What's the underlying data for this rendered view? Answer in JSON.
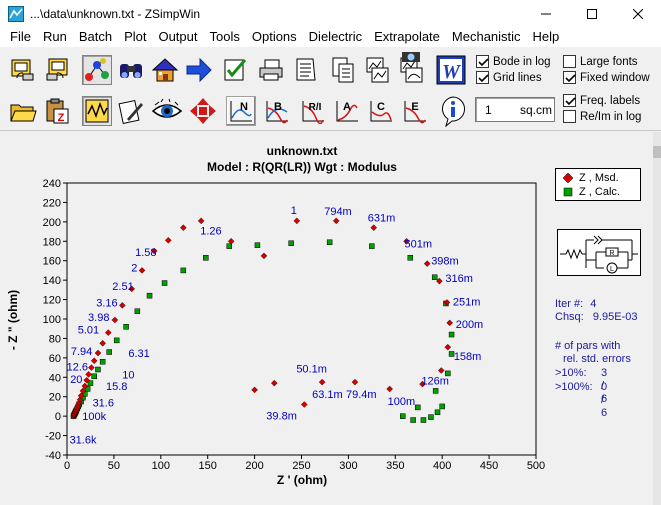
{
  "window": {
    "title": "...\\data\\unknown.txt - ZSimpWin"
  },
  "menu": [
    "File",
    "Run",
    "Batch",
    "Plot",
    "Output",
    "Tools",
    "Options",
    "Dielectric",
    "Extrapolate",
    "Mechanistic",
    "Help"
  ],
  "toolbar": {
    "row1_icons": [
      "open-data-icon",
      "open-model-icon",
      "molecule-icon",
      "binoculars-icon",
      "home-icon",
      "arrow-right-icon",
      "checklist-icon",
      "printer-icon",
      "print-preview-icon",
      "document-icon",
      "copy-graph-icon",
      "paste-graph-icon",
      "camera-icon",
      "word-icon"
    ],
    "row2_icons": [
      "open-folder-icon",
      "clipboard-z-icon",
      "fit-wave-icon",
      "edit-notes-icon",
      "eye-icon",
      "move-arrows-icon",
      "nyquist-plot-icon",
      "bode-plot-icon",
      "ri-plot-icon",
      "admittance-plot-icon",
      "capacitance-plot-icon",
      "permittivity-plot-icon",
      "info-icon"
    ],
    "row2_labels": [
      "N",
      "B",
      "R/I",
      "A",
      "C",
      "E"
    ],
    "area_value": "1",
    "area_unit": "sq.cm",
    "checkboxes": [
      {
        "label": "Bode in log",
        "checked": true
      },
      {
        "label": "Grid lines",
        "checked": true
      },
      {
        "label": "Large fonts",
        "checked": false
      },
      {
        "label": "Fixed window",
        "checked": true
      },
      {
        "label": "Freq. labels",
        "checked": true
      },
      {
        "label": "Re/Im in log",
        "checked": false
      }
    ]
  },
  "chart_data": {
    "type": "scatter",
    "title": "unknown.txt",
    "subtitle": "Model : R(QR(LR))      Wgt : Modulus",
    "xlabel": "Z ' (ohm)",
    "ylabel": "- Z \" (ohm)",
    "xlim": [
      0,
      500
    ],
    "ylim": [
      -40,
      240
    ],
    "xticks": [
      0,
      50,
      100,
      150,
      200,
      250,
      300,
      350,
      400,
      450,
      500
    ],
    "yticks": [
      -40,
      -20,
      0,
      20,
      40,
      60,
      80,
      100,
      120,
      140,
      160,
      180,
      200,
      220,
      240
    ],
    "grid": false,
    "legend_position": "right",
    "colors": {
      "measured": "#d40000",
      "calculated": "#00a000",
      "freq_label": "#0000c0"
    },
    "series": [
      {
        "name": "Z , Msd.",
        "marker": "diamond",
        "x": [
          7,
          7.5,
          8,
          8.5,
          9,
          9.5,
          10,
          10.5,
          11,
          12,
          13,
          14,
          15,
          17,
          19,
          21,
          23,
          26,
          29,
          33,
          38,
          44,
          51,
          59,
          69,
          80,
          93,
          108,
          124,
          143,
          175,
          210,
          245,
          287,
          327,
          362,
          384,
          397,
          405,
          408,
          406,
          399,
          379,
          344,
          307,
          272,
          253,
          221,
          200
        ],
        "y": [
          0,
          1,
          2,
          3,
          4,
          5,
          6,
          7,
          9,
          11,
          14,
          17,
          21,
          26,
          31,
          37,
          43,
          50,
          57,
          65,
          75,
          86,
          99,
          114,
          131,
          150,
          170,
          181,
          194,
          201,
          180,
          165,
          201,
          201,
          194,
          180,
          157,
          139,
          117,
          96,
          71,
          47,
          33,
          28,
          35,
          35,
          12,
          34,
          27
        ]
      },
      {
        "name": "Z , Calc.",
        "marker": "square",
        "x": [
          7,
          7.5,
          8,
          8.5,
          9,
          9.5,
          10,
          11,
          12,
          13,
          15,
          17,
          19,
          22,
          25,
          29,
          33,
          38,
          45,
          53,
          63,
          75,
          88,
          104,
          124,
          148,
          173,
          203,
          239,
          280,
          325,
          366,
          392,
          404,
          410,
          410,
          406,
          393,
          374,
          358,
          369,
          380,
          388,
          395,
          400
        ],
        "y": [
          0,
          1,
          2,
          3,
          4,
          5,
          6,
          8,
          10,
          12,
          15,
          19,
          23,
          28,
          34,
          41,
          48,
          56,
          66,
          78,
          92,
          108,
          124,
          137,
          150,
          163,
          175,
          176,
          178,
          179,
          175,
          163,
          143,
          116,
          84,
          64,
          44,
          26,
          9,
          0,
          -4,
          -4,
          -1,
          4,
          10
        ]
      }
    ],
    "freq_labels": [
      {
        "text": "1.26",
        "x": 174,
        "y": 180
      },
      {
        "text": "1",
        "x": 245,
        "y": 201
      },
      {
        "text": "794m",
        "x": 287,
        "y": 201
      },
      {
        "text": "631m",
        "x": 327,
        "y": 194
      },
      {
        "text": "501m",
        "x": 362,
        "y": 180
      },
      {
        "text": "398m",
        "x": 384,
        "y": 157
      },
      {
        "text": "316m",
        "x": 397,
        "y": 139
      },
      {
        "text": "251m",
        "x": 405,
        "y": 117
      },
      {
        "text": "200m",
        "x": 408,
        "y": 96
      },
      {
        "text": "158m",
        "x": 406,
        "y": 71
      },
      {
        "text": "126m",
        "x": 380,
        "y": 47
      },
      {
        "text": "100m",
        "x": 344,
        "y": 28
      },
      {
        "text": "79.4m",
        "x": 307,
        "y": 35
      },
      {
        "text": "63.1m",
        "x": 272,
        "y": 35
      },
      {
        "text": "50.1m",
        "x": 253,
        "y": 39
      },
      {
        "text": "39.8m",
        "x": 221,
        "y": 12
      },
      {
        "text": "1.58",
        "x": 143,
        "y": 166
      },
      {
        "text": "2",
        "x": 124,
        "y": 150
      },
      {
        "text": "2.51",
        "x": 108,
        "y": 131
      },
      {
        "text": "3.16",
        "x": 93,
        "y": 114
      },
      {
        "text": "3.98",
        "x": 80,
        "y": 99
      },
      {
        "text": "5.01",
        "x": 69,
        "y": 86
      },
      {
        "text": "6.31",
        "x": 59,
        "y": 65
      },
      {
        "text": "7.94",
        "x": 51,
        "y": 67
      },
      {
        "text": "10",
        "x": 44,
        "y": 43
      },
      {
        "text": "12.6",
        "x": 38,
        "y": 50
      },
      {
        "text": "15.8",
        "x": 33,
        "y": 31
      },
      {
        "text": "20",
        "x": 29,
        "y": 37
      },
      {
        "text": "31.6",
        "x": 23,
        "y": 14
      },
      {
        "text": "100k",
        "x": 12,
        "y": 0
      },
      {
        "text": "31.6k",
        "x": 7,
        "y": -14
      }
    ]
  },
  "legend": {
    "items": [
      "Z  ,  Msd.",
      "Z  ,  Calc."
    ]
  },
  "circuit": {
    "labels": [
      "R",
      "L"
    ]
  },
  "fit_info": {
    "iter_label": "Iter #:",
    "iter_value": "4",
    "chsq_label": "Chsq:",
    "chsq_value": "9.95E-03",
    "pars_line1": "# of pars with",
    "pars_line2": "rel. std. errors",
    "gt10_label": ">10%:",
    "gt10_value": "3 / 6",
    "gt100_label": ">100%:",
    "gt100_value": "0 / 6"
  }
}
